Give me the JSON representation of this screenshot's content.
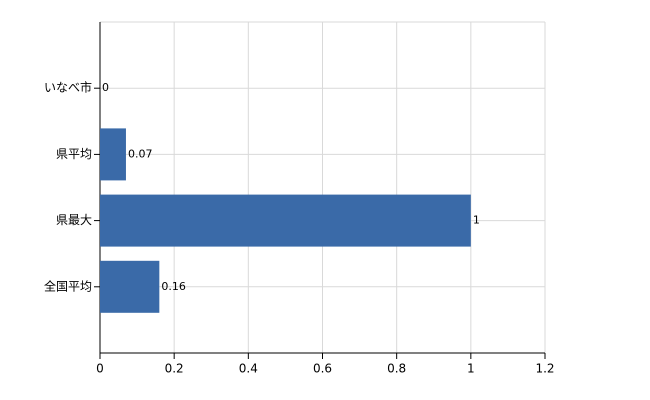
{
  "chart_data": {
    "type": "bar",
    "orientation": "horizontal",
    "categories": [
      "いなべ市",
      "県平均",
      "県最大",
      "全国平均"
    ],
    "values": [
      0,
      0.07,
      1,
      0.16
    ],
    "color": "#3a6aa8",
    "xlim": [
      0,
      1.2
    ],
    "xticks": [
      0,
      0.2,
      0.4,
      0.6,
      0.8,
      1,
      1.2
    ],
    "grid": true
  }
}
